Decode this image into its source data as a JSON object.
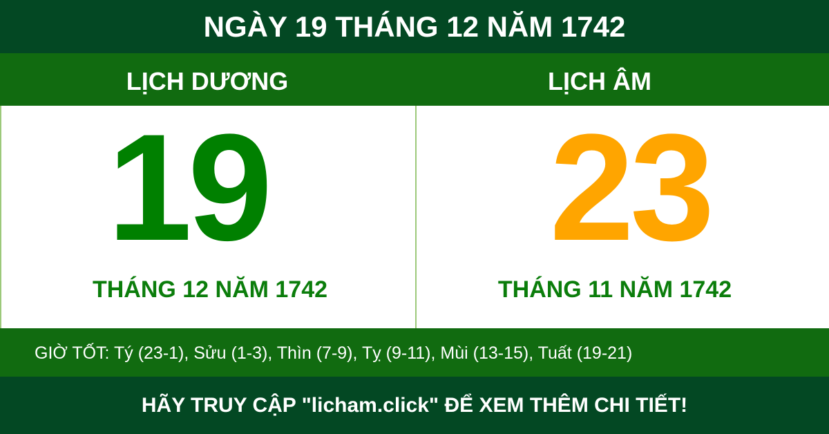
{
  "title": "NGÀY 19 THÁNG 12 NĂM 1742",
  "solar": {
    "label": "LỊCH DƯƠNG",
    "day": "19",
    "month_year": "THÁNG 12 NĂM 1742",
    "color": "#008000"
  },
  "lunar": {
    "label": "LỊCH ÂM",
    "day": "23",
    "month_year": "THÁNG 11 NĂM 1742",
    "color": "#ffa500"
  },
  "good_hours": "GIỜ TỐT: Tý (23-1), Sửu (1-3), Thìn (7-9), Tỵ (9-11), Mùi (13-15), Tuất (19-21)",
  "footer": "HÃY TRUY CẬP \"licham.click\" ĐỂ XEM THÊM CHI TIẾT!"
}
